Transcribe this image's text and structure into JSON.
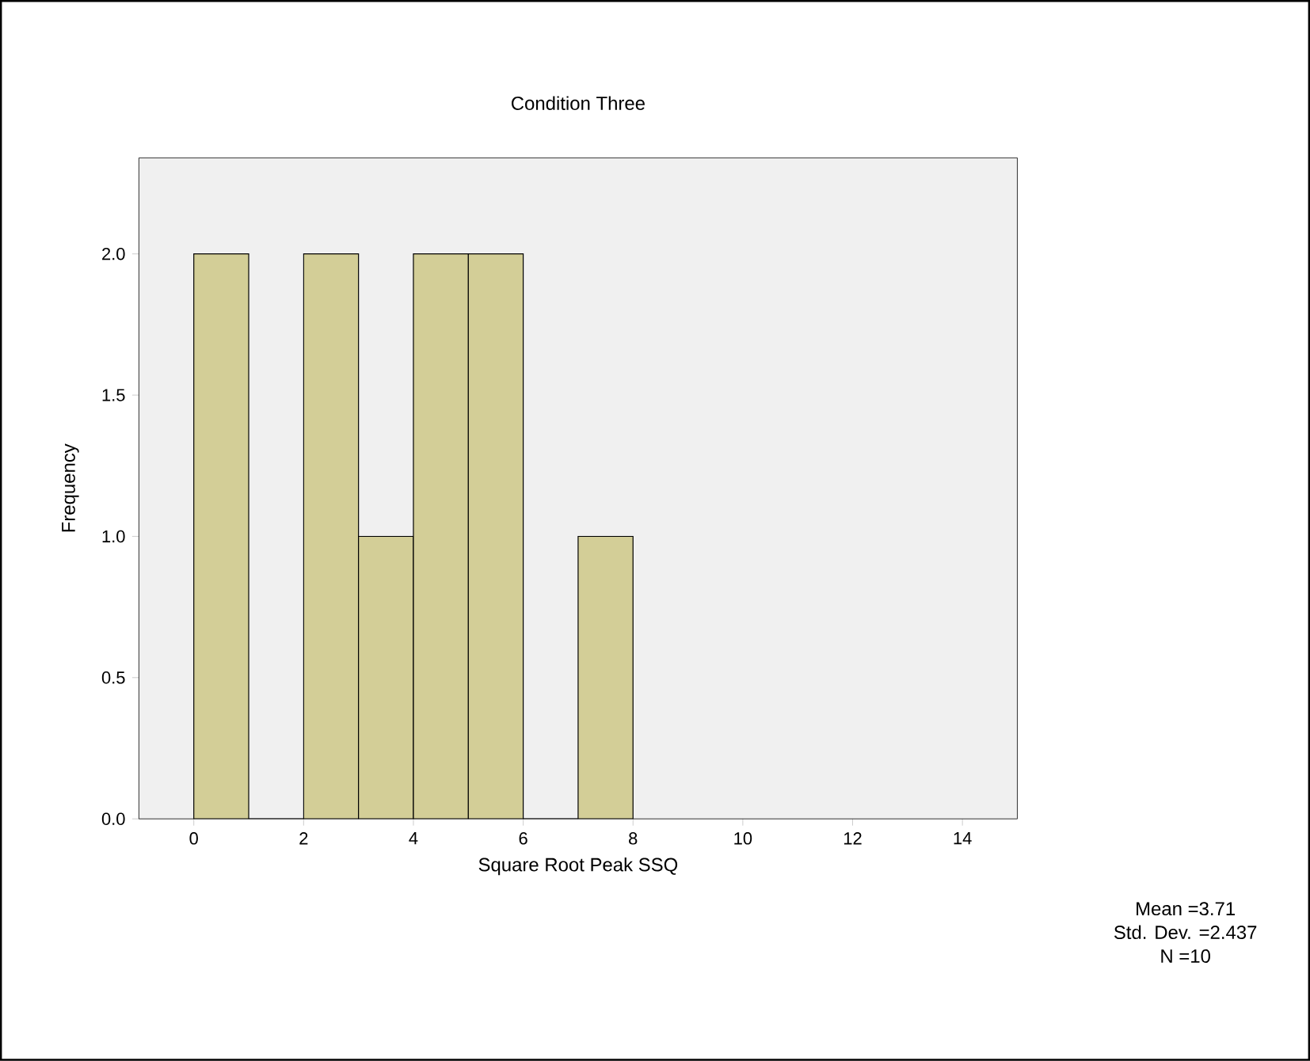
{
  "chart_data": {
    "type": "histogram",
    "title": "Condition Three",
    "xlabel": "Square Root Peak SSQ",
    "ylabel": "Frequency",
    "bins": [
      0,
      1,
      2,
      3,
      4,
      5,
      6,
      7,
      8
    ],
    "values": [
      2,
      0,
      2,
      1,
      2,
      2,
      0,
      1
    ],
    "color": "#d3ce97",
    "xlim": [
      -1,
      15
    ],
    "xticks": [
      0,
      2,
      4,
      6,
      8,
      10,
      12,
      14
    ],
    "ylim": [
      0,
      2.34
    ],
    "yticks": [
      {
        "value": 0,
        "label": "0.0"
      },
      {
        "value": 0.5,
        "label": "0.5"
      },
      {
        "value": 1.0,
        "label": "1.0"
      },
      {
        "value": 1.5,
        "label": "1.5"
      },
      {
        "value": 2.0,
        "label": "2.0"
      }
    ],
    "annotations": [
      "Mean =3.71",
      "Std. Dev. =2.437",
      "N =10"
    ],
    "grid": false
  }
}
